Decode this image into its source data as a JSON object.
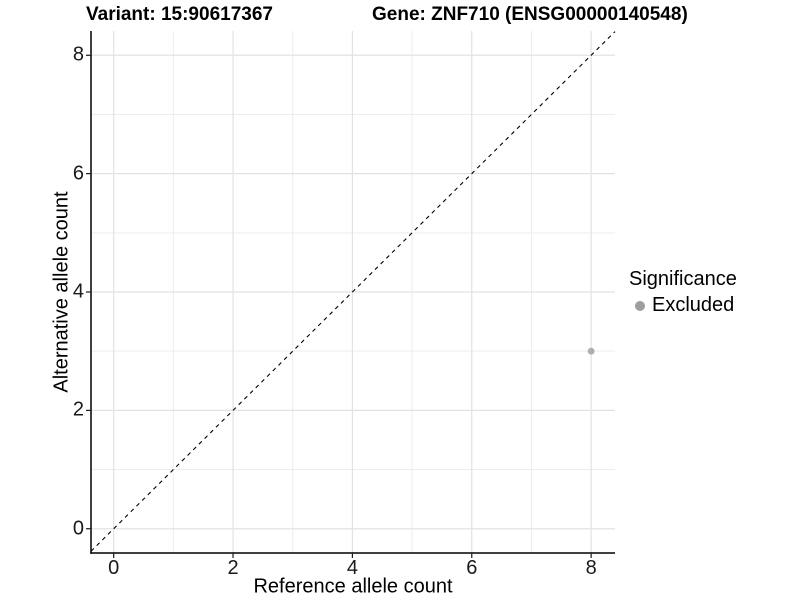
{
  "title": {
    "left": "Variant: 15:90617367",
    "right": "Gene: ZNF710 (ENSG00000140548)"
  },
  "chart_data": {
    "type": "scatter",
    "xlabel": "Reference allele count",
    "ylabel": "Alternative allele count",
    "xlim": [
      -0.38,
      8.4
    ],
    "ylim": [
      -0.41,
      8.41
    ],
    "x_breaks": [
      0,
      2,
      4,
      6,
      8
    ],
    "y_breaks": [
      0,
      2,
      4,
      6,
      8
    ],
    "x_minor_breaks": [
      1,
      3,
      5,
      7
    ],
    "y_minor_breaks": [
      1,
      3,
      5,
      7
    ],
    "grid": true,
    "points": [
      {
        "x": 8,
        "y": 3,
        "series": "Excluded"
      }
    ],
    "reference_line": {
      "slope": 1,
      "intercept": 0,
      "style": "dashed"
    },
    "legend": {
      "title": "Significance",
      "position": "right",
      "entries": [
        {
          "label": "Excluded",
          "color": "#9e9e9e"
        }
      ]
    }
  },
  "colors": {
    "background": "#ffffff",
    "point": "#aeaeae",
    "legend_dot": "#9e9e9e",
    "grid_major": "#e2e2e2",
    "grid_minor": "#ededed",
    "axis_line": "#000000",
    "dashed_line": "#000000",
    "tick_mark": "#1a1a1a"
  }
}
